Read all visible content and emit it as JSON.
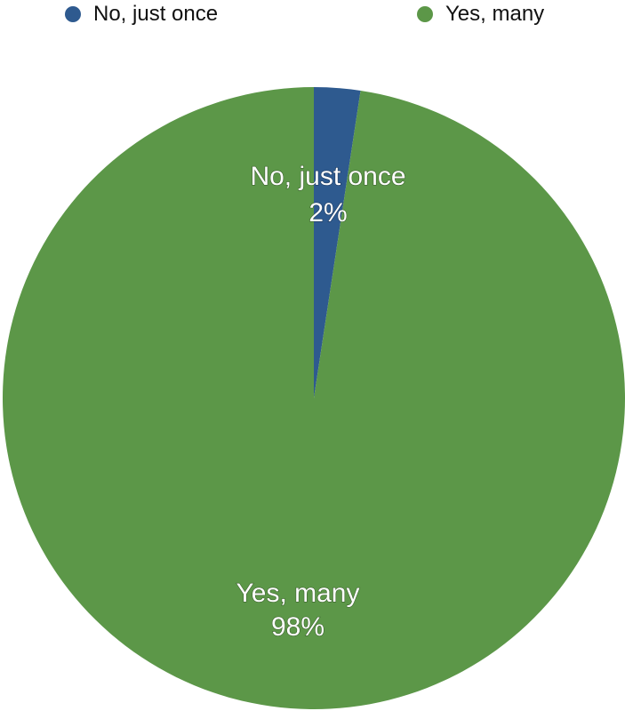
{
  "chart_data": {
    "type": "pie",
    "categories": [
      "No, just once",
      "Yes, many"
    ],
    "values": [
      2.4,
      97.6
    ],
    "display_percents": [
      "2%",
      "98%"
    ],
    "colors": [
      "#2e5a8f",
      "#5c9748"
    ],
    "title": "",
    "legend": {
      "position": "top"
    }
  },
  "legend": {
    "items": [
      {
        "label": "No, just once",
        "color": "#2e5a8f"
      },
      {
        "label": "Yes, many",
        "color": "#5c9748"
      }
    ]
  },
  "labels": [
    {
      "name": "No, just once",
      "percent": "2%"
    },
    {
      "name": "Yes, many",
      "percent": "98%"
    }
  ]
}
